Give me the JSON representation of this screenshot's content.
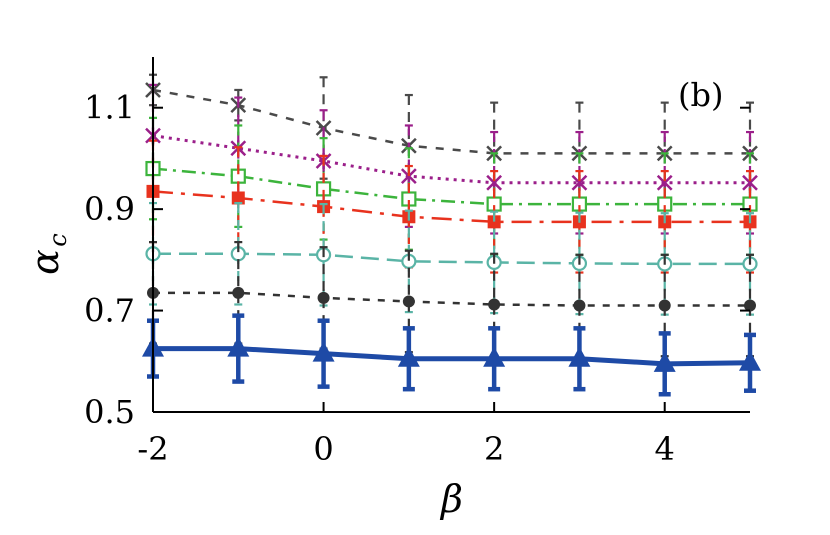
{
  "chart_data": {
    "type": "line",
    "title": "",
    "annotation": "(b)",
    "xlabel": "β",
    "ylabel": "α",
    "ylabel_subscript": "c",
    "xlim": [
      -2,
      5
    ],
    "ylim": [
      0.5,
      1.2
    ],
    "xticks": [
      -2,
      0,
      2,
      4
    ],
    "xtick_labels": [
      "-2",
      "0",
      "2",
      "4"
    ],
    "yticks": [
      0.5,
      0.7,
      0.9,
      1.1
    ],
    "ytick_labels": [
      "0.5",
      "0.7",
      "0.9",
      "1.1"
    ],
    "grid": false,
    "legend": "none",
    "x": [
      -2,
      -1,
      0,
      1,
      2,
      3,
      4,
      5
    ],
    "series": [
      {
        "color": "#4a4a4a",
        "marker": "x",
        "dash": "8,9",
        "width": 2.5,
        "values": [
          1.135,
          1.105,
          1.06,
          1.025,
          1.01,
          1.01,
          1.01,
          1.01
        ],
        "errors": [
          0.03,
          0.03,
          0.1,
          0.1,
          0.1,
          0.1,
          0.1,
          0.1
        ]
      },
      {
        "color": "#9b1f8a",
        "marker": "asterisk",
        "dash": "3,5",
        "width": 3,
        "values": [
          1.045,
          1.02,
          0.995,
          0.965,
          0.952,
          0.952,
          0.952,
          0.952
        ],
        "errors": [
          0.1,
          0.1,
          0.1,
          0.1,
          0.1,
          0.1,
          0.1,
          0.1
        ]
      },
      {
        "color": "#3cb43c",
        "marker": "square-open",
        "dash": "14,6,3,6",
        "width": 2.5,
        "values": [
          0.98,
          0.965,
          0.94,
          0.92,
          0.91,
          0.91,
          0.91,
          0.91
        ],
        "errors": [
          0.1,
          0.1,
          0.1,
          0.1,
          0.1,
          0.1,
          0.1,
          0.1
        ]
      },
      {
        "color": "#e8321e",
        "marker": "square-filled",
        "dash": "20,8,4,8",
        "width": 2.5,
        "values": [
          0.935,
          0.922,
          0.905,
          0.885,
          0.875,
          0.875,
          0.875,
          0.875
        ],
        "errors": [
          0.1,
          0.1,
          0.1,
          0.1,
          0.1,
          0.1,
          0.1,
          0.1
        ]
      },
      {
        "color": "#5ab4a6",
        "marker": "circle-open",
        "dash": "18,8",
        "width": 2.5,
        "values": [
          0.812,
          0.812,
          0.81,
          0.797,
          0.795,
          0.793,
          0.792,
          0.792
        ],
        "errors": [
          0.1,
          0.1,
          0.1,
          0.1,
          0.1,
          0.1,
          0.1,
          0.1
        ]
      },
      {
        "color": "#333333",
        "marker": "circle-filled",
        "dash": "7,8",
        "width": 2.5,
        "values": [
          0.735,
          0.735,
          0.725,
          0.718,
          0.712,
          0.71,
          0.71,
          0.71
        ],
        "errors": [
          0.1,
          0.1,
          0.1,
          0.1,
          0.1,
          0.1,
          0.1,
          0.1
        ]
      },
      {
        "color": "#1e4aa6",
        "marker": "triangle",
        "dash": "",
        "width": 5,
        "values": [
          0.625,
          0.625,
          0.615,
          0.605,
          0.605,
          0.605,
          0.595,
          0.597
        ],
        "errors": [
          0.055,
          0.065,
          0.065,
          0.06,
          0.06,
          0.06,
          0.06,
          0.055
        ]
      }
    ]
  }
}
